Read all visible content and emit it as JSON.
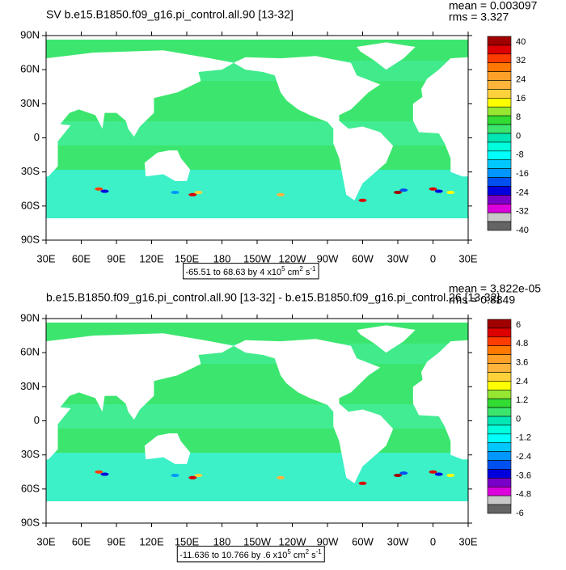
{
  "panels": [
    {
      "title": "SV b.e15.B1850.f09_g16.pi_control.all.90 [13-32]",
      "mean": "mean = 0.003097",
      "rms": "rms = 3.327",
      "yticks": [
        "90N",
        "60N",
        "30N",
        "0",
        "30S",
        "60S",
        "90S"
      ],
      "xticks": [
        "30E",
        "60E",
        "90E",
        "120E",
        "150E",
        "180",
        "150W",
        "120W",
        "90W",
        "60W",
        "30W",
        "0",
        "30E"
      ],
      "colorbar_labels": [
        "40",
        "32",
        "24",
        "16",
        "8",
        "0",
        "-8",
        "-16",
        "-24",
        "-32",
        "-40"
      ],
      "range": {
        "text": "-65.51 to 68.63 by 4 x10",
        "exp1": "5",
        "unit": " cm",
        "exp2": "2",
        "tail": " s",
        "exp3": "-1"
      }
    },
    {
      "title": "b.e15.B1850.f09_g16.pi_control.all.90 [13-32] - b.e15.B1850.f09_g16.pi_control.26 [13-32]",
      "mean": "mean = 3.822e-05",
      "rms": "rms = 0.8849",
      "yticks": [
        "90N",
        "60N",
        "30N",
        "0",
        "30S",
        "60S",
        "90S"
      ],
      "xticks": [
        "30E",
        "60E",
        "90E",
        "120E",
        "150E",
        "180",
        "150W",
        "120W",
        "90W",
        "60W",
        "30W",
        "0",
        "30E"
      ],
      "colorbar_labels": [
        "6",
        "4.8",
        "3.6",
        "2.4",
        "1.2",
        "0",
        "-1.2",
        "-2.4",
        "-3.6",
        "-4.8",
        "-6"
      ],
      "range": {
        "text": "-11.636 to 10.766 by .6 x10",
        "exp1": "5",
        "unit": " cm",
        "exp2": "2",
        "tail": " s",
        "exp3": "-1"
      }
    }
  ],
  "colorbar_colors": [
    "#a00000",
    "#dc0000",
    "#ff3c00",
    "#ff7800",
    "#ffa028",
    "#ffb43c",
    "#ffd23c",
    "#ffff00",
    "#96e632",
    "#32dc32",
    "#3ce66e",
    "#00e6b4",
    "#00ffdc",
    "#00ffff",
    "#00c8ff",
    "#0096ff",
    "#0050f0",
    "#0000dc",
    "#7800c8",
    "#dc00dc",
    "#c8c8c8",
    "#646464"
  ]
}
